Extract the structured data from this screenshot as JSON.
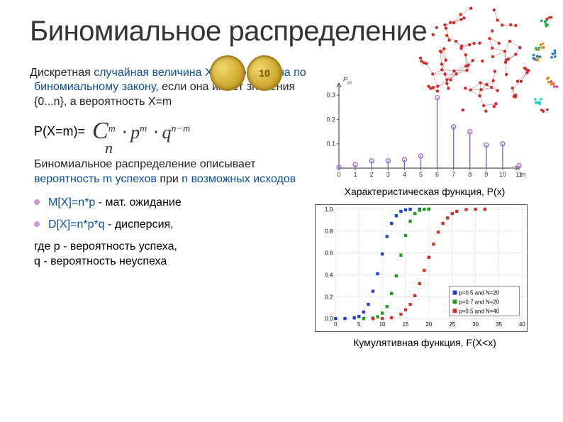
{
  "title": "Биномиальное распределение",
  "definition": {
    "prefix": "Дискретная",
    "highlight": "случайная величина X распределена по биномиальному закону",
    "suffix": ", если она имеет значения {0...n}, а вероятность X=m"
  },
  "formula_label": "P(X=m)=",
  "formula_parts": {
    "C": "C",
    "sup_m": "m",
    "sub_n": "n",
    "p": "p",
    "pm": "m",
    "q": "q",
    "qnm": "n−m",
    "dot": "⋅"
  },
  "describe": {
    "prefix": "Биномиальное распределение описывает ",
    "highlight1": "вероятность m успехов",
    "mid": " при ",
    "highlight2": "n возможных исходов"
  },
  "mean": {
    "formula": "M[X]=n*p",
    "suffix": "  - мат. ожидание"
  },
  "var": {
    "formula": "D[X]=n*p*q",
    "suffix": " - дисперсия,"
  },
  "legend_tail": "где p - вероятность успеха,\n      q - вероятность неуспеха",
  "coins": {
    "second_label": "10"
  },
  "chart1": {
    "caption": "Характеристическая функция, P(x)",
    "ylabel": "P_m",
    "xlim": [
      0,
      11
    ],
    "ylim": [
      0,
      0.35
    ],
    "xtick_step": 1,
    "yticks": [
      0.1,
      0.2,
      0.3
    ],
    "stem_color": "#6a70d4",
    "marker_color": "#b268d4",
    "axis_color": "#555",
    "tick_font": 9,
    "data_x": [
      0,
      1,
      2,
      3,
      4,
      5,
      6,
      7,
      8,
      9,
      10,
      11
    ],
    "data_y": [
      0.003,
      0.015,
      0.03,
      0.03,
      0.035,
      0.05,
      0.29,
      0.17,
      0.15,
      0.095,
      0.1,
      0.01
    ]
  },
  "chart2": {
    "caption": "Кумулятивная функция, F(X<x)",
    "xlim": [
      0,
      40
    ],
    "ylim": [
      0,
      1
    ],
    "xtick_step": 5,
    "ytick_step": 0.2,
    "axis_color": "#333",
    "grid_color": "#d8d8d8",
    "tick_font": 8,
    "legend": [
      {
        "label": "p=0.5 and N=20",
        "color": "#1f3fd4"
      },
      {
        "label": "p=0.7 and N=20",
        "color": "#18a018"
      },
      {
        "label": "p=0.5 and N=40",
        "color": "#d43027"
      }
    ],
    "series": [
      {
        "color": "#1f3fd4",
        "x": [
          0,
          2,
          4,
          5,
          6,
          7,
          8,
          9,
          10,
          11,
          12,
          13,
          14,
          15,
          16,
          18,
          20
        ],
        "y": [
          0,
          0.001,
          0.006,
          0.02,
          0.06,
          0.13,
          0.25,
          0.41,
          0.59,
          0.75,
          0.87,
          0.94,
          0.98,
          0.994,
          0.999,
          1,
          1
        ]
      },
      {
        "color": "#18a018",
        "x": [
          6,
          8,
          9,
          10,
          11,
          12,
          13,
          14,
          15,
          16,
          17,
          18,
          19,
          20
        ],
        "y": [
          0,
          0.005,
          0.017,
          0.05,
          0.11,
          0.23,
          0.39,
          0.58,
          0.76,
          0.89,
          0.96,
          0.99,
          0.999,
          1
        ]
      },
      {
        "color": "#d43027",
        "x": [
          8,
          10,
          12,
          14,
          15,
          16,
          17,
          18,
          19,
          20,
          21,
          22,
          23,
          24,
          25,
          26,
          28,
          30,
          32
        ],
        "y": [
          0,
          0.001,
          0.008,
          0.04,
          0.08,
          0.13,
          0.21,
          0.32,
          0.44,
          0.56,
          0.68,
          0.79,
          0.87,
          0.92,
          0.96,
          0.98,
          0.997,
          0.9998,
          1
        ]
      }
    ]
  },
  "network": {
    "dot_color_main": "#d42a2a",
    "dot_colors_cluster": [
      "#d42a2a",
      "#1f73d4",
      "#22aa55",
      "#e08b20",
      "#d43fbb",
      "#7a41d4",
      "#e8d820",
      "#20c9c9"
    ],
    "edge_color": "#b36666",
    "n_main": 90,
    "n_small_clusters": 12
  }
}
